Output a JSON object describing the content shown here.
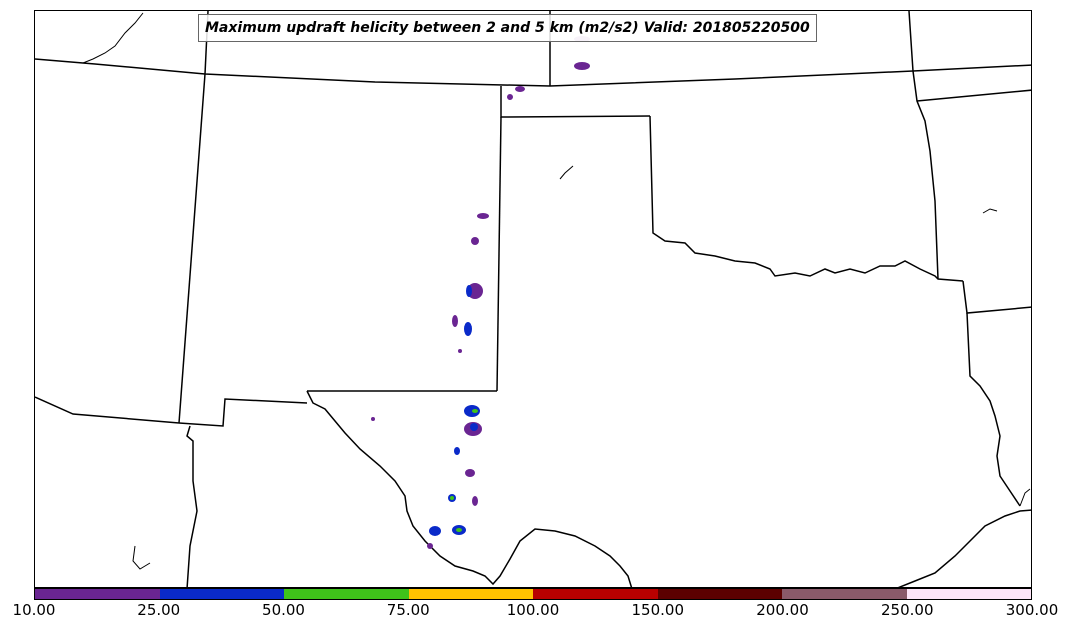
{
  "title": "Maximum updraft helicity between 2 and 5 km (m2/s2) Valid: 201805220500",
  "colorbar": {
    "ticks": [
      "10.00",
      "25.00",
      "50.00",
      "75.00",
      "100.00",
      "150.00",
      "200.00",
      "250.00",
      "300.00"
    ],
    "colors": [
      "#6a2592",
      "#0a2ac9",
      "#3fc31a",
      "#ffc300",
      "#b80000",
      "#5c0000",
      "#8a5a6a",
      "#fde4f8"
    ]
  },
  "map": {
    "region": "Southern Plains",
    "boundary_color": "#000000"
  }
}
